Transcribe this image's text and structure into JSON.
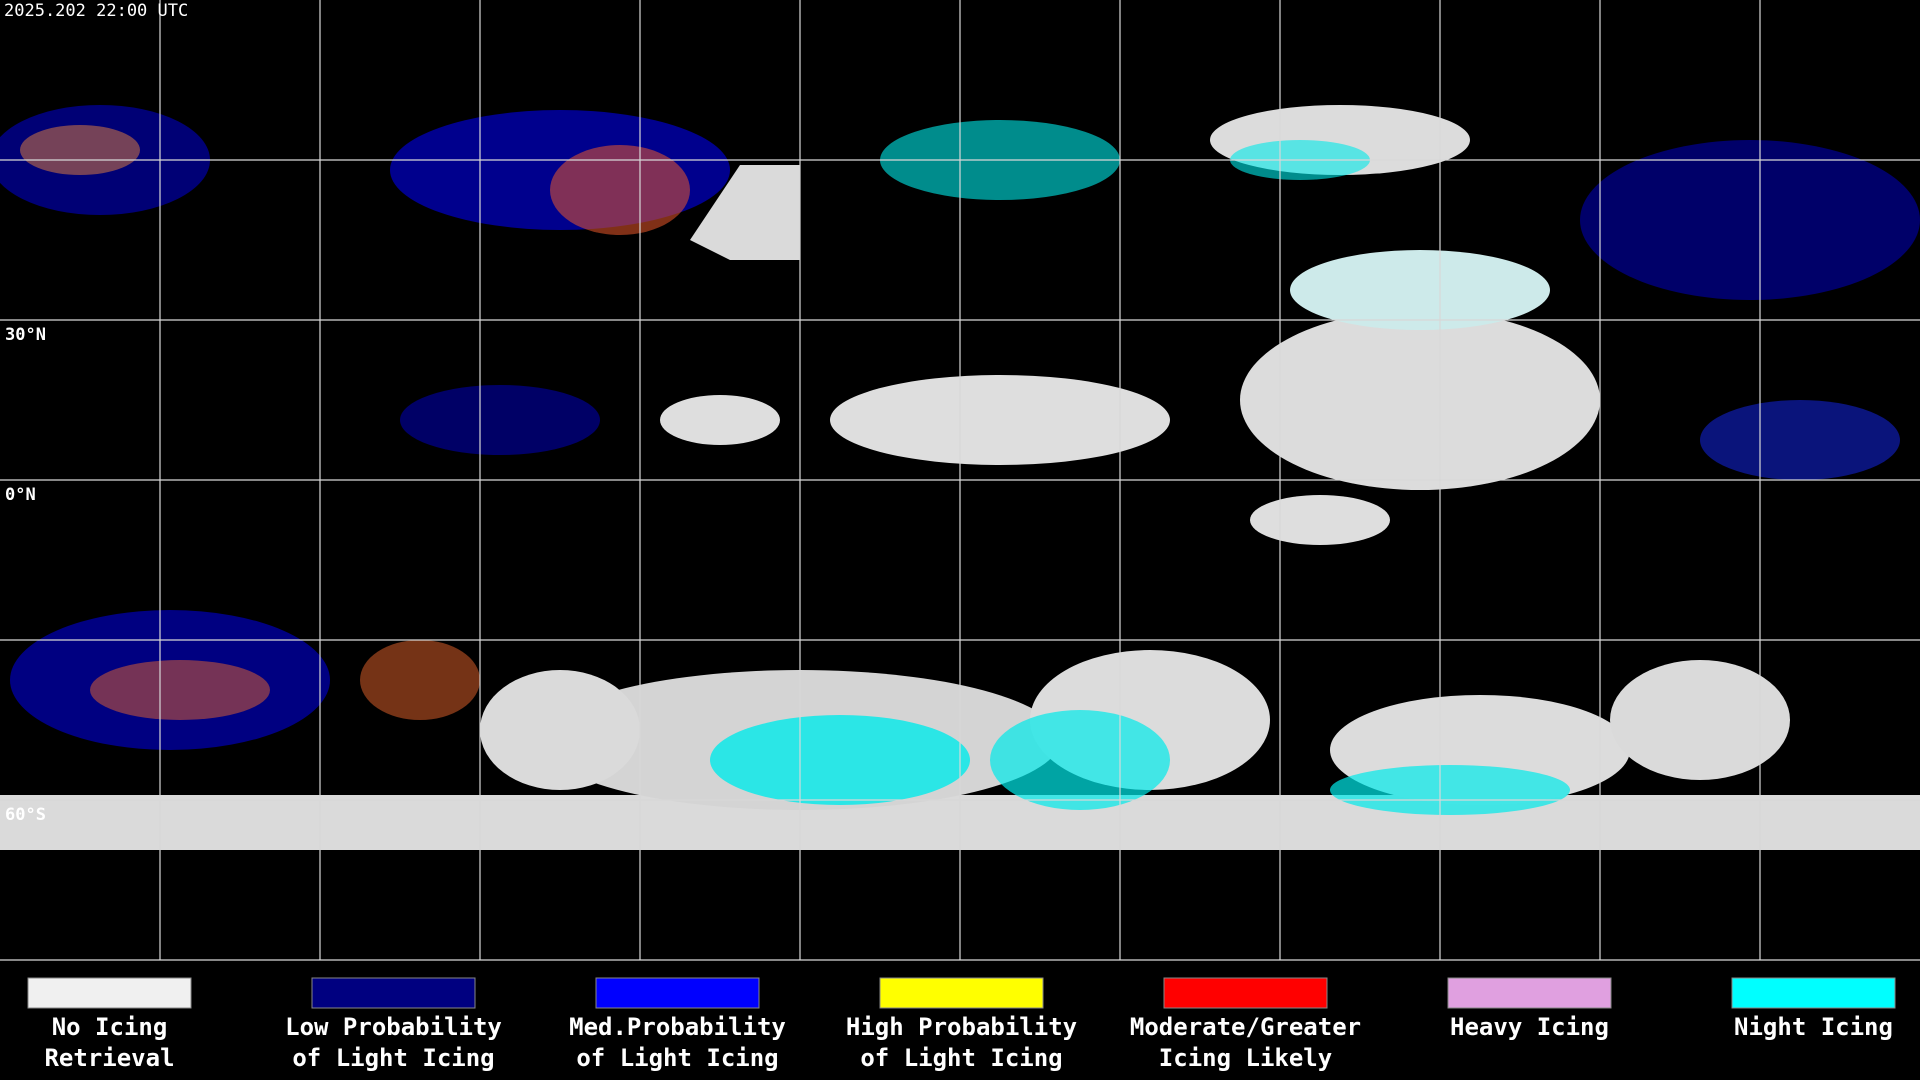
{
  "header": {
    "timestamp": "2025.202 22:00 UTC"
  },
  "map": {
    "latitude_labels": [
      "30°N",
      "0°N",
      "60°S"
    ]
  },
  "legend": {
    "items": [
      {
        "label": [
          "No Icing",
          "Retrieval"
        ],
        "color": "#f0f0f0"
      },
      {
        "label": [
          "Low Probability",
          "of Light Icing"
        ],
        "color": "#000080"
      },
      {
        "label": [
          "Med.Probability",
          "of Light Icing"
        ],
        "color": "#0000ff"
      },
      {
        "label": [
          "High Probability",
          "of Light Icing"
        ],
        "color": "#ffff00"
      },
      {
        "label": [
          "Moderate/Greater",
          "Icing Likely"
        ],
        "color": "#ff0000"
      },
      {
        "label": [
          "Heavy Icing"
        ],
        "color": "#e0a0e0"
      },
      {
        "label": [
          "Night Icing"
        ],
        "color": "#00ffff"
      }
    ]
  }
}
